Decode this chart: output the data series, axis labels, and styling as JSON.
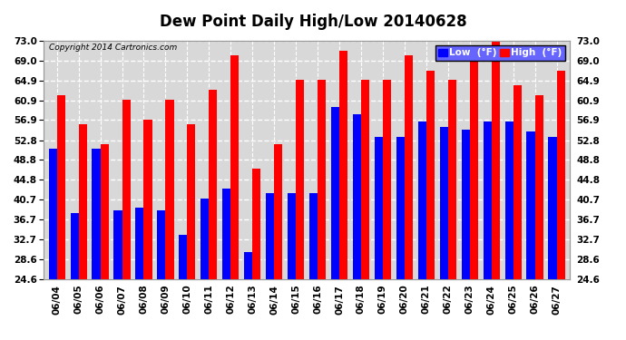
{
  "title": "Dew Point Daily High/Low 20140628",
  "copyright": "Copyright 2014 Cartronics.com",
  "dates": [
    "06/04",
    "06/05",
    "06/06",
    "06/07",
    "06/08",
    "06/09",
    "06/10",
    "06/11",
    "06/12",
    "06/13",
    "06/14",
    "06/15",
    "06/16",
    "06/17",
    "06/18",
    "06/19",
    "06/20",
    "06/21",
    "06/22",
    "06/23",
    "06/24",
    "06/25",
    "06/26",
    "06/27"
  ],
  "low_values": [
    51.0,
    38.0,
    51.0,
    38.5,
    39.0,
    38.5,
    33.5,
    41.0,
    43.0,
    30.0,
    42.0,
    42.0,
    42.0,
    59.5,
    58.0,
    53.5,
    53.5,
    56.5,
    55.5,
    55.0,
    56.5,
    56.5,
    54.5,
    53.5
  ],
  "high_values": [
    62.0,
    56.0,
    52.0,
    61.0,
    57.0,
    61.0,
    56.0,
    63.0,
    70.0,
    47.0,
    52.0,
    65.0,
    65.0,
    71.0,
    65.0,
    65.0,
    70.0,
    67.0,
    65.0,
    70.0,
    74.0,
    64.0,
    62.0,
    67.0
  ],
  "low_color": "#0000ff",
  "high_color": "#ff0000",
  "bg_color": "#ffffff",
  "plot_bg_color": "#d8d8d8",
  "ylim": [
    24.6,
    73.0
  ],
  "yticks": [
    24.6,
    28.6,
    32.7,
    36.7,
    40.7,
    44.8,
    48.8,
    52.8,
    56.9,
    60.9,
    64.9,
    69.0,
    73.0
  ],
  "grid_color": "#ffffff",
  "title_fontsize": 12,
  "tick_fontsize": 7.5,
  "legend_low_label": "Low  (°F)",
  "legend_high_label": "High  (°F)",
  "bar_width": 0.38
}
